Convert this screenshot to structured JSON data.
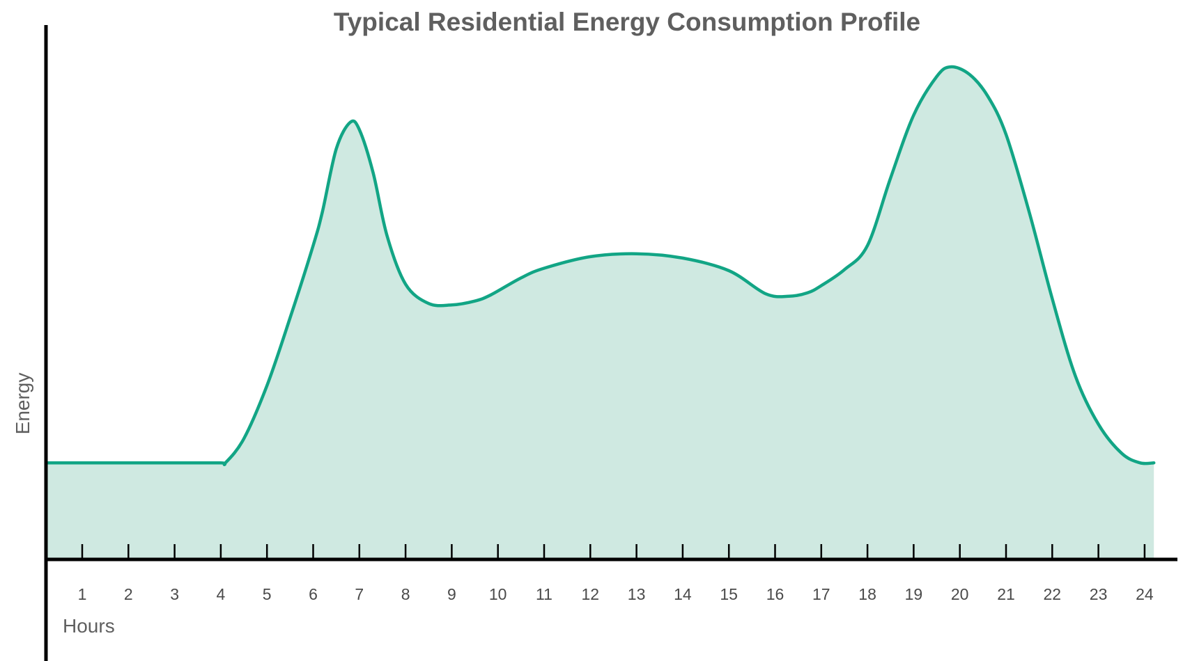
{
  "chart_data": {
    "type": "area",
    "title": "Typical Residential Energy Consumption Profile",
    "xlabel": "Hours",
    "ylabel": "Energy",
    "x_ticks": [
      "1",
      "2",
      "3",
      "4",
      "5",
      "6",
      "7",
      "8",
      "9",
      "10",
      "11",
      "12",
      "13",
      "14",
      "15",
      "16",
      "17",
      "18",
      "19",
      "20",
      "21",
      "22",
      "23",
      "24"
    ],
    "xlim": [
      0.25,
      24.5
    ],
    "ylim": [
      0,
      1
    ],
    "y_ticks_shown": false,
    "grid": false,
    "legend": "none",
    "series": [
      {
        "x": [
          0.25,
          1,
          2,
          3,
          4,
          4.1,
          4.5,
          5,
          5.5,
          6,
          6.2,
          6.5,
          6.8,
          7,
          7.3,
          7.6,
          8,
          8.5,
          9,
          9.5,
          9.85,
          10.5,
          11,
          12,
          13,
          14,
          15,
          15.8,
          16.3,
          16.7,
          17,
          17.5,
          18,
          18.5,
          19,
          19.5,
          19.8,
          20.2,
          20.6,
          21,
          21.5,
          22,
          22.5,
          23,
          23.5,
          23.9,
          24.2
        ],
        "y": [
          0.2,
          0.2,
          0.2,
          0.2,
          0.2,
          0.2,
          0.25,
          0.36,
          0.5,
          0.65,
          0.72,
          0.85,
          0.905,
          0.89,
          0.8,
          0.67,
          0.57,
          0.53,
          0.527,
          0.535,
          0.548,
          0.583,
          0.603,
          0.627,
          0.633,
          0.624,
          0.598,
          0.55,
          0.545,
          0.552,
          0.567,
          0.6,
          0.65,
          0.79,
          0.92,
          1.0,
          1.02,
          1.005,
          0.96,
          0.88,
          0.72,
          0.54,
          0.38,
          0.28,
          0.22,
          0.2,
          0.2
        ]
      }
    ],
    "colors": {
      "line": "#12a585",
      "fill": "#cfe9e1",
      "axis": "#000000"
    }
  }
}
